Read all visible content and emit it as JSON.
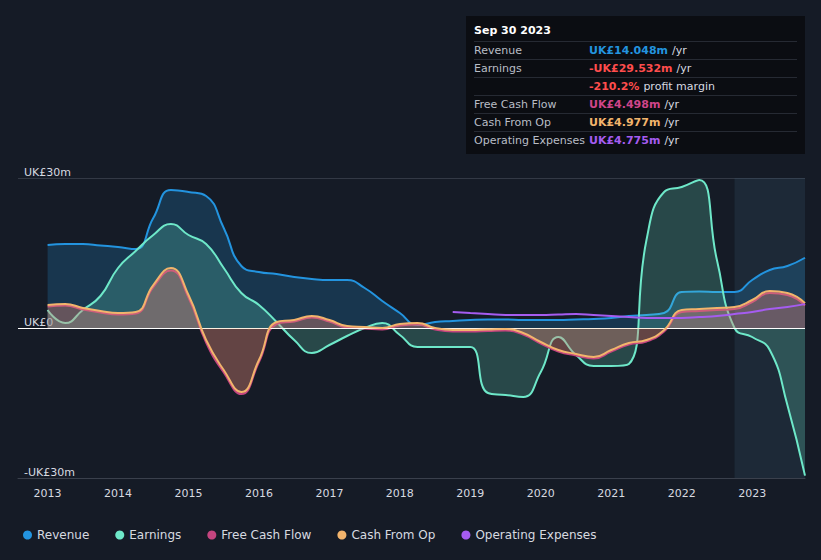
{
  "chart_data": {
    "type": "line",
    "x": [
      2013,
      2013.25,
      2013.5,
      2013.75,
      2014,
      2014.25,
      2014.5,
      2014.75,
      2015,
      2015.25,
      2015.5,
      2015.75,
      2016,
      2016.25,
      2016.5,
      2016.75,
      2017,
      2017.25,
      2017.5,
      2017.75,
      2018,
      2018.25,
      2018.5,
      2018.75,
      2019,
      2019.25,
      2019.5,
      2019.75,
      2020,
      2020.25,
      2020.5,
      2020.75,
      2021,
      2021.25,
      2021.5,
      2021.75,
      2022,
      2022.25,
      2022.5,
      2022.75,
      2023,
      2023.25,
      2023.5,
      2023.75
    ],
    "xlim": [
      2012.58,
      2023.75
    ],
    "xticks": [
      2013,
      2014,
      2015,
      2016,
      2017,
      2018,
      2019,
      2020,
      2021,
      2022,
      2023
    ],
    "ylim": [
      -30,
      30
    ],
    "yticks": [
      {
        "value": -30,
        "label": "-UK£30m"
      },
      {
        "value": 0,
        "label": "UK£0"
      },
      {
        "value": 30,
        "label": "UK£30m"
      }
    ],
    "grid": true,
    "legend": "bottom-left",
    "series": [
      {
        "name": "Revenue",
        "color": "#2394df",
        "values": [
          16.6,
          16.8,
          16.8,
          16.5,
          16.2,
          15.8,
          22,
          27.6,
          27.2,
          26.4,
          20,
          12.4,
          11.2,
          10.8,
          10.2,
          9.8,
          9.6,
          9.6,
          8,
          5.4,
          3,
          0.6,
          1.2,
          1.4,
          1.6,
          1.7,
          1.7,
          1.6,
          1.6,
          1.6,
          1.7,
          1.8,
          2,
          2.4,
          2.6,
          3,
          7.2,
          7.3,
          7.2,
          7.2,
          9.6,
          11.6,
          12.4,
          14.048
        ]
      },
      {
        "name": "Earnings",
        "color": "#6ee8c9",
        "values": [
          3.6,
          1,
          3.6,
          6.4,
          12,
          15.4,
          18.6,
          20.8,
          18.6,
          16.8,
          12,
          7,
          4.6,
          1.2,
          -2.4,
          -5,
          -3.4,
          -1.6,
          0,
          1,
          -1.4,
          -3.8,
          -3.8,
          -3.8,
          -3.8,
          -13,
          -13.4,
          -13.8,
          -8.8,
          -1.8,
          -5.4,
          -7.6,
          -7.6,
          -7.2,
          17.6,
          27.2,
          28.2,
          29.6,
          13.6,
          0,
          -1.8,
          -4.4,
          -15.4,
          -29.532
        ]
      },
      {
        "name": "Free Cash Flow",
        "color": "#c4457f",
        "values": [
          4.3,
          4.5,
          3.7,
          3.1,
          2.7,
          2.9,
          8.2,
          11.5,
          6.1,
          -2.9,
          -8.9,
          -13.2,
          -6.8,
          0.8,
          1.3,
          2.1,
          1.3,
          0.1,
          -0.1,
          -0.3,
          0.5,
          0.7,
          -0.3,
          -0.7,
          -0.7,
          -0.6,
          -0.5,
          -1.3,
          -3.1,
          -4.7,
          -5.5,
          -6.1,
          -4.7,
          -3.3,
          -2.7,
          -0.7,
          3.2,
          3.4,
          3.6,
          3.8,
          5.2,
          7,
          6.6,
          4.498
        ]
      },
      {
        "name": "Cash From Op",
        "color": "#f2b46c",
        "values": [
          4.6,
          4.8,
          4,
          3.4,
          3,
          3.2,
          8.6,
          12,
          6.6,
          -2.4,
          -8.4,
          -12.8,
          -6.4,
          1.2,
          1.6,
          2.4,
          1.6,
          0.4,
          0.2,
          0,
          0.8,
          1,
          0,
          -0.4,
          -0.4,
          -0.3,
          -0.2,
          -1,
          -2.8,
          -4.4,
          -5.2,
          -5.8,
          -4.4,
          -3,
          -2.4,
          -0.4,
          3.6,
          3.8,
          4,
          4.2,
          5.6,
          7.4,
          7,
          4.977
        ]
      },
      {
        "name": "Operating Expenses",
        "color": "#a55cf0",
        "values": [
          null,
          null,
          null,
          null,
          null,
          null,
          null,
          null,
          null,
          null,
          null,
          null,
          null,
          null,
          null,
          null,
          null,
          null,
          null,
          null,
          null,
          null,
          null,
          3.2,
          3,
          2.8,
          2.6,
          2.6,
          2.6,
          2.7,
          2.8,
          2.6,
          2.4,
          2.2,
          2,
          2,
          2,
          2.2,
          2.4,
          2.8,
          3.2,
          3.8,
          4.2,
          4.775
        ]
      }
    ],
    "info_box": {
      "title": "Sep 30 2023",
      "rows": [
        {
          "label": "Revenue",
          "value": "UK£14.048m",
          "unit": "/yr",
          "color": "#2394df"
        },
        {
          "label": "Earnings",
          "value": "-UK£29.532m",
          "unit": "/yr",
          "color": "#ff4d4d"
        },
        {
          "value": "-210.2%",
          "unit": "profit margin",
          "color": "#ff4d4d"
        },
        {
          "label": "Free Cash Flow",
          "value": "UK£4.498m",
          "unit": "/yr",
          "color": "#d1458a"
        },
        {
          "label": "Cash From Op",
          "value": "UK£4.977m",
          "unit": "/yr",
          "color": "#f2b46c"
        },
        {
          "label": "Operating Expenses",
          "value": "UK£4.775m",
          "unit": "/yr",
          "color": "#a55cf0"
        }
      ]
    }
  }
}
